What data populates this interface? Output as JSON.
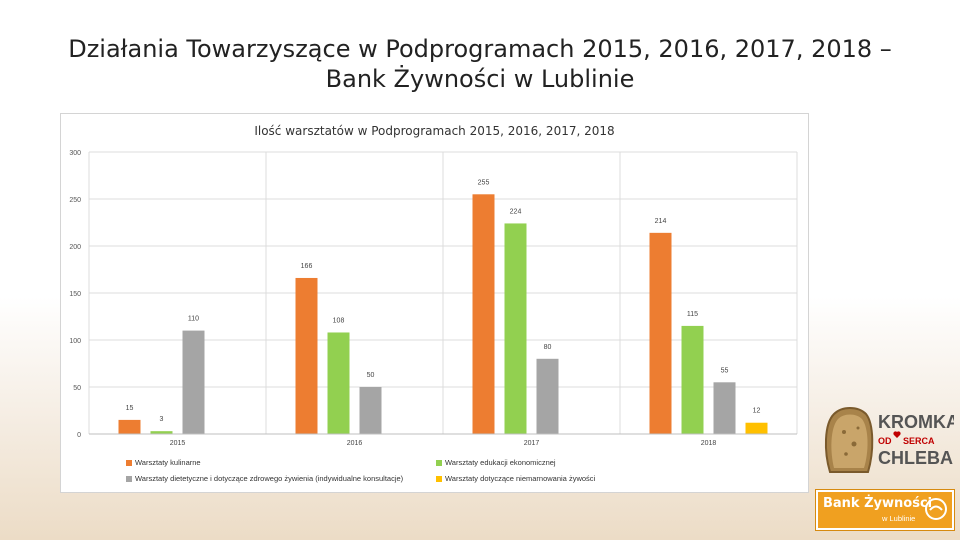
{
  "slide": {
    "title_line1": "Działania Towarzyszące w Podprogramach 2015, 2016, 2017, 2018 –",
    "title_line2": "Bank Żywności w Lublinie"
  },
  "chart_data": {
    "type": "bar",
    "title": "Ilość warsztatów w Podprogramach 2015, 2016, 2017, 2018",
    "categories": [
      "2015",
      "2016",
      "2017",
      "2018"
    ],
    "ylim": [
      0,
      300
    ],
    "yticks": [
      0,
      50,
      100,
      150,
      200,
      250,
      300
    ],
    "grid": true,
    "legend_position": "bottom",
    "series": [
      {
        "name": "Warsztaty kulinarne",
        "color": "#ed7d31",
        "values": [
          15,
          166,
          255,
          214
        ]
      },
      {
        "name": "Warsztaty edukacji ekonomicznej",
        "color": "#92d050",
        "values": [
          3,
          108,
          224,
          115
        ]
      },
      {
        "name": "Warsztaty dietetyczne i dotyczące zdrowego żywienia (indywidualne konsultacje)",
        "color": "#a5a5a5",
        "values": [
          110,
          50,
          80,
          55
        ]
      },
      {
        "name": "Warsztaty dotyczące niemarnowania żywości",
        "color": "#ffc000",
        "values": [
          null,
          null,
          null,
          12
        ]
      }
    ]
  },
  "logos": {
    "bread_line1": "KROMKA",
    "bread_od": "OD",
    "bread_serca": "SERCA",
    "bread_line3": "CHLEBA",
    "bank_name": "Bank Żywności",
    "bank_sub": "w Lublinie"
  }
}
